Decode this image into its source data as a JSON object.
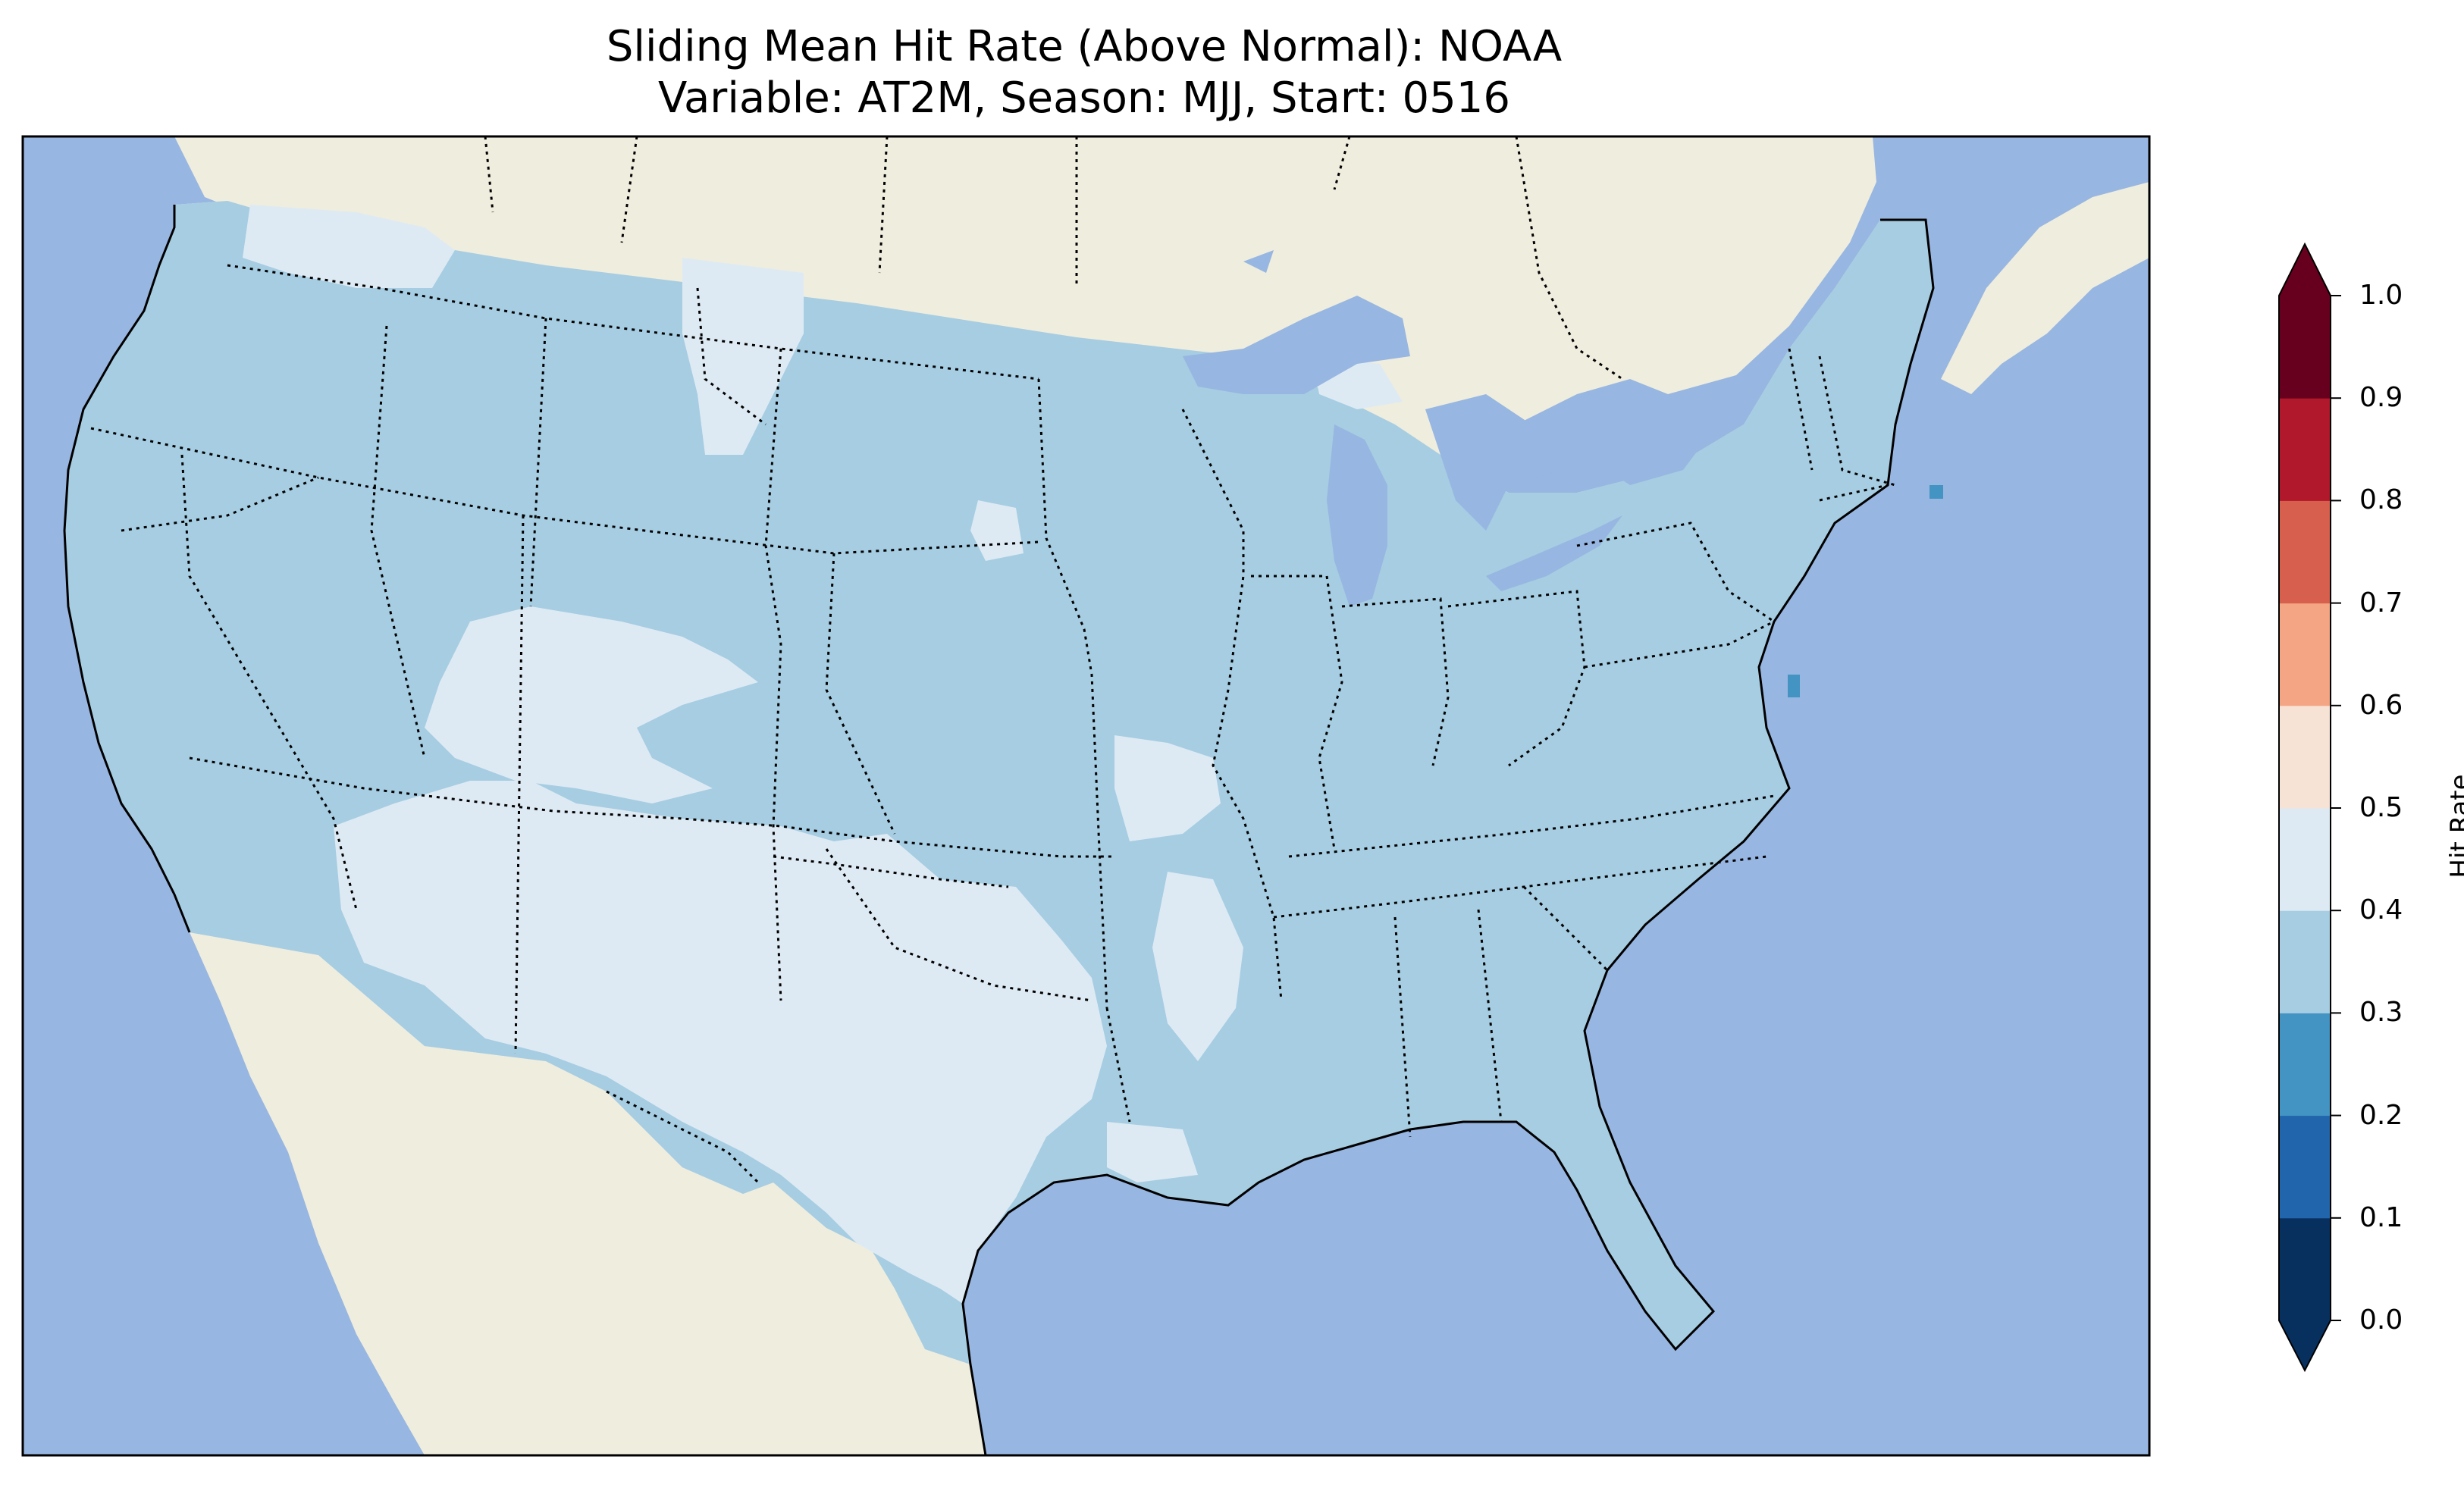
{
  "title": {
    "line1": "Sliding Mean Hit Rate (Above Normal): NOAA",
    "line2": "Variable: AT2M, Season: MJJ, Start: 0516"
  },
  "colorbar": {
    "label": "Hit Rate",
    "ticks": [
      "0.0",
      "0.1",
      "0.2",
      "0.3",
      "0.4",
      "0.5",
      "0.6",
      "0.7",
      "0.8",
      "0.9",
      "1.0"
    ],
    "bins": [
      {
        "range": "0.0-0.1",
        "color": "#08305f"
      },
      {
        "range": "0.1-0.2",
        "color": "#2166ac"
      },
      {
        "range": "0.2-0.3",
        "color": "#4393c3"
      },
      {
        "range": "0.3-0.4",
        "color": "#a6cde2"
      },
      {
        "range": "0.4-0.5",
        "color": "#deeaf3"
      },
      {
        "range": "0.5-0.6",
        "color": "#f7e2d6"
      },
      {
        "range": "0.6-0.7",
        "color": "#f4a583"
      },
      {
        "range": "0.7-0.8",
        "color": "#d6604d"
      },
      {
        "range": "0.8-0.9",
        "color": "#b2182b"
      },
      {
        "range": "0.9-1.0",
        "color": "#67001f"
      }
    ],
    "extend": "both"
  },
  "map_colors": {
    "ocean": "#97b6e1",
    "land": "#efedde",
    "hit_0_3_0_4": "#a6cde2",
    "hit_0_4_0_5": "#deeaf3",
    "hit_0_2_0_3": "#4393c3"
  }
}
